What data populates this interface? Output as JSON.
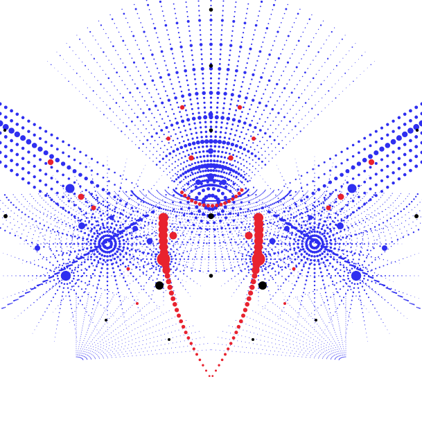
{
  "colors": {
    "background": "#ffffff",
    "primary_dots": "#2f2ff0",
    "secondary_dots": "#e8222f",
    "tertiary_dots": "#000000"
  },
  "figure": {
    "style": "radial dot-lattice pattern, mirror-symmetric about the vertical axis",
    "visible_text": ""
  }
}
